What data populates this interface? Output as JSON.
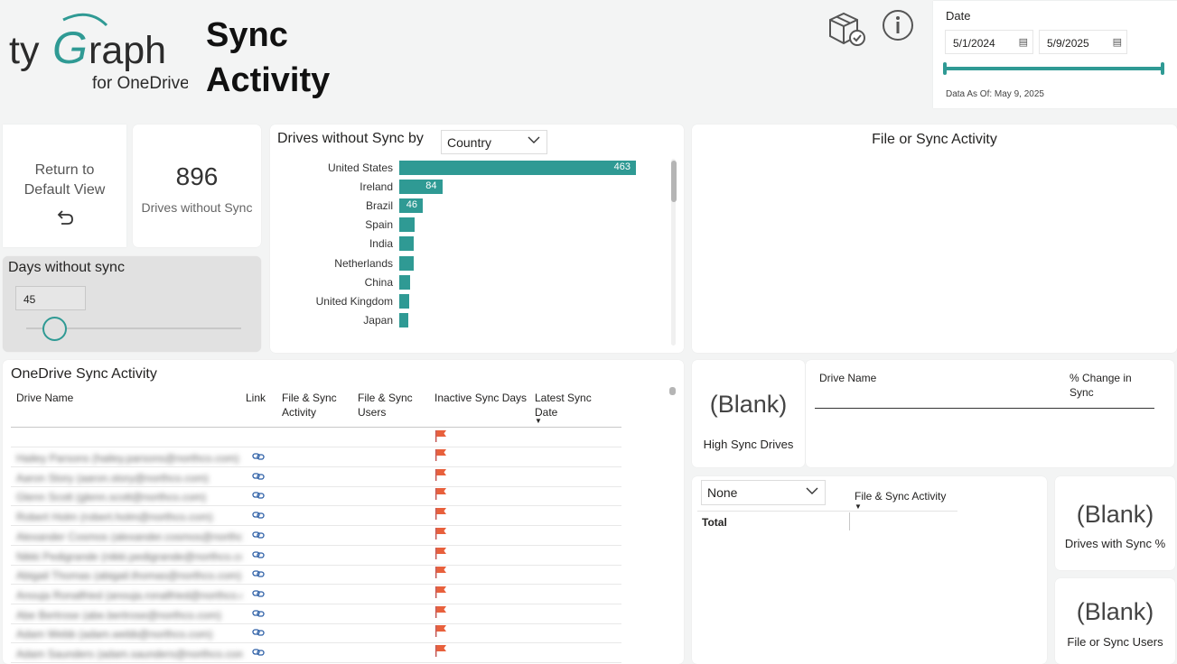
{
  "brand": {
    "logo_main": "tyGraph",
    "logo_sub": "for OneDrive",
    "accent_color": "#2f9a94",
    "logo_color": "#2f9a94"
  },
  "page": {
    "title_line1": "Sync",
    "title_line2": "Activity"
  },
  "header_icons": [
    "package-check-icon",
    "info-icon"
  ],
  "date_filter": {
    "title": "Date",
    "start": "5/1/2024",
    "end": "5/9/2025",
    "as_of": "Data As Of: May 9, 2025",
    "range_fraction": [
      0,
      1
    ]
  },
  "return_button": {
    "label_line1": "Return to",
    "label_line2": "Default View",
    "icon": "undo-icon"
  },
  "kpi": {
    "value": "896",
    "label": "Drives without Sync"
  },
  "days_slicer": {
    "title": "Days without sync",
    "value": "45"
  },
  "chart": {
    "title": "Drives without Sync by",
    "dropdown": "Country"
  },
  "chart_data": {
    "type": "bar",
    "orientation": "horizontal",
    "title": "Drives without Sync by",
    "categories": [
      "United States",
      "Ireland",
      "Brazil",
      "Spain",
      "India",
      "Netherlands",
      "China",
      "United Kingdom",
      "Japan"
    ],
    "values": [
      463,
      84,
      46,
      30,
      28,
      28,
      22,
      19,
      17
    ],
    "data_labels": [
      "463",
      "84",
      "46",
      "",
      "",
      "",
      "",
      "",
      ""
    ],
    "xlim": [
      0,
      463
    ],
    "grid": false
  },
  "file_sync_panel": {
    "title": "File or Sync Activity"
  },
  "sync_table": {
    "title": "OneDrive Sync Activity",
    "columns": {
      "drive_name": "Drive Name",
      "link": "Link",
      "fsa_line1": "File & Sync",
      "fsa_line2": "Activity",
      "fsu_line1": "File & Sync",
      "fsu_line2": "Users",
      "inactive": "Inactive Sync Days",
      "latest_line1": "Latest Sync",
      "latest_line2": "Date"
    },
    "rows": [
      {
        "name": "Hailey Parsons (hailey.parsons@northco.com)"
      },
      {
        "name": "Aaron Story (aaron.story@northco.com)"
      },
      {
        "name": "Glenn Scott (glenn.scott@northco.com)"
      },
      {
        "name": "Robert Holm (robert.holm@northco.com)"
      },
      {
        "name": "Alexander Cosmos (alexander.cosmos@northco.com)"
      },
      {
        "name": "Nikki Pedigrande (nikki.pedigrande@northco.com)"
      },
      {
        "name": "Abigail Thomas (abigail.thomas@northco.com)"
      },
      {
        "name": "Anouja Ronalfried (anouja.ronalfried@northco.com)"
      },
      {
        "name": "Abe Bertrose (abe.bertrose@northco.com)"
      },
      {
        "name": "Adam Webb (adam.webb@northco.com)"
      },
      {
        "name": "Adam Saunders (adam.saunders@northco.com)"
      }
    ]
  },
  "high_sync": {
    "value": "(Blank)",
    "label": "High Sync Drives"
  },
  "pct_change": {
    "col1": "Drive Name",
    "col2_line1": "% Change in",
    "col2_line2": "Sync"
  },
  "matrix": {
    "dropdown": "None",
    "column_header": "File & Sync Activity",
    "total_label": "Total"
  },
  "drives_with_sync": {
    "value": "(Blank)",
    "label": "Drives with Sync %"
  },
  "file_sync_users": {
    "value": "(Blank)",
    "label": "File or Sync Users"
  }
}
